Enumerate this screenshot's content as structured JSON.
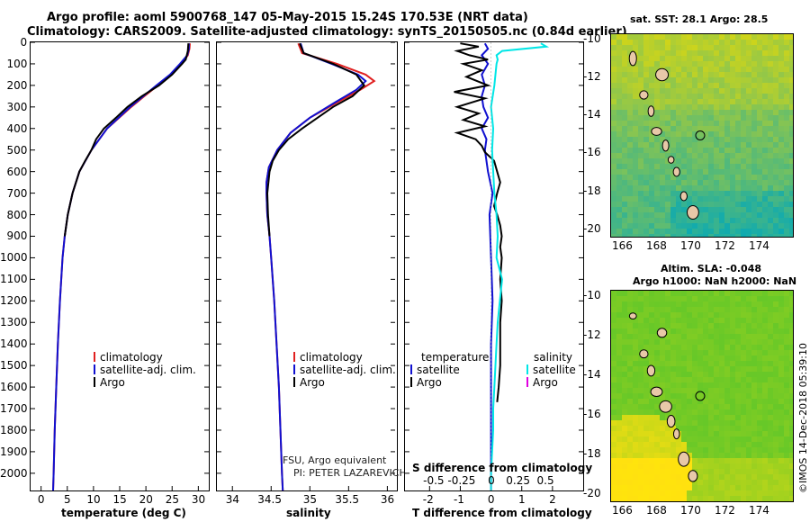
{
  "title_line1": "Argo profile: aoml 5900768_147 05-May-2015 15.24S 170.53E (NRT data)",
  "title_line2": "Climatology: CARS2009. Satellite-adjusted climatology: synTS_20150505.nc (0.84d earlier)",
  "depth_ticks": [
    "0",
    "100",
    "200",
    "300",
    "400",
    "500",
    "600",
    "700",
    "800",
    "900",
    "1000",
    "1100",
    "1200",
    "1300",
    "1400",
    "1500",
    "1600",
    "1700",
    "1800",
    "1900",
    "2000"
  ],
  "colors": {
    "climatology": "#e02020",
    "satellite": "#1010d0",
    "argo": "#000000",
    "satellite_s": "#00e6e6",
    "argo_s": "#e000e0"
  },
  "chart_data": [
    {
      "type": "line",
      "xlabel": "temperature (deg C)",
      "xticks": [
        "0",
        "5",
        "10",
        "15",
        "20",
        "25",
        "30"
      ],
      "xlim": [
        -2,
        32
      ],
      "ylim": [
        0,
        2080
      ],
      "legend": [
        "climatology",
        "satellite-adj. clim.",
        "Argo"
      ],
      "series": [
        {
          "name": "climatology",
          "depth": [
            5,
            30,
            60,
            100,
            150,
            200,
            250,
            300,
            400,
            500,
            600,
            700,
            800,
            900,
            1000,
            1200,
            1400,
            1600,
            1800,
            2000,
            2080
          ],
          "values": [
            28.4,
            28.3,
            28.0,
            26.8,
            24.9,
            22.3,
            19.7,
            17.2,
            12.6,
            9.6,
            7.3,
            6.0,
            5.1,
            4.5,
            4.1,
            3.6,
            3.2,
            2.9,
            2.6,
            2.4,
            2.3
          ]
        },
        {
          "name": "satellite-adj. clim.",
          "depth": [
            5,
            30,
            60,
            100,
            150,
            200,
            250,
            300,
            400,
            500,
            600,
            700,
            800,
            900,
            1000,
            1200,
            1400,
            1600,
            1800,
            2000,
            2080
          ],
          "values": [
            28.2,
            28.2,
            27.9,
            26.5,
            24.6,
            22.0,
            19.5,
            17.0,
            12.6,
            9.6,
            7.3,
            6.0,
            5.1,
            4.5,
            4.1,
            3.6,
            3.2,
            2.9,
            2.6,
            2.4,
            2.3
          ]
        },
        {
          "name": "Argo",
          "depth": [
            5,
            40,
            80,
            100,
            150,
            200,
            250,
            300,
            350,
            400,
            450,
            500,
            550,
            600,
            700,
            800,
            900
          ],
          "values": [
            28.1,
            28.0,
            27.6,
            26.9,
            25.0,
            22.5,
            19.2,
            16.5,
            14.3,
            12.0,
            10.5,
            9.6,
            8.4,
            7.3,
            6.0,
            5.1,
            4.5
          ]
        }
      ]
    },
    {
      "type": "line",
      "xlabel": "salinity",
      "xticks": [
        "34",
        "34.5",
        "35",
        "35.5",
        "36"
      ],
      "xlim": [
        33.8,
        36.1
      ],
      "ylim": [
        0,
        2080
      ],
      "legend": [
        "climatology",
        "satellite-adj. clim.",
        "Argo"
      ],
      "series": [
        {
          "name": "climatology",
          "depth": [
            5,
            50,
            100,
            150,
            180,
            220,
            280,
            350,
            420,
            500,
            580,
            650,
            700,
            800,
            900,
            1000,
            1200,
            1400,
            1600,
            1800,
            2000,
            2080
          ],
          "values": [
            34.85,
            34.9,
            35.35,
            35.72,
            35.83,
            35.65,
            35.35,
            35.0,
            34.75,
            34.58,
            34.47,
            34.44,
            34.44,
            34.45,
            34.48,
            34.5,
            34.54,
            34.57,
            34.6,
            34.62,
            34.64,
            34.65
          ]
        },
        {
          "name": "satellite-adj. clim.",
          "depth": [
            5,
            50,
            100,
            150,
            180,
            220,
            280,
            350,
            420,
            500,
            580,
            650,
            700,
            800,
            900,
            1000,
            1200,
            1400,
            1600,
            1800,
            2000,
            2080
          ],
          "values": [
            34.88,
            34.92,
            35.28,
            35.62,
            35.72,
            35.6,
            35.32,
            35.0,
            34.75,
            34.58,
            34.47,
            34.44,
            34.44,
            34.45,
            34.48,
            34.5,
            34.54,
            34.57,
            34.6,
            34.62,
            34.64,
            34.65
          ]
        },
        {
          "name": "Argo",
          "depth": [
            5,
            50,
            100,
            150,
            200,
            250,
            300,
            350,
            400,
            450,
            500,
            550,
            600,
            700,
            800,
            900
          ],
          "values": [
            34.87,
            34.92,
            35.3,
            35.6,
            35.7,
            35.55,
            35.3,
            35.1,
            34.9,
            34.72,
            34.6,
            34.52,
            34.48,
            34.45,
            34.46,
            34.48
          ]
        }
      ]
    },
    {
      "type": "line",
      "xlabel": "T difference from climatology",
      "xticks": [
        "-2",
        "-1",
        "0",
        "1",
        "2"
      ],
      "xlim": [
        -2.8,
        3.0
      ],
      "ylim": [
        0,
        2080
      ],
      "top_label": "S difference from climatology",
      "top_ticks": [
        "-0.5",
        "-0.25",
        "0",
        "0.25",
        "0.5"
      ],
      "legend_left": {
        "heading": "temperature",
        "items": [
          "satellite",
          "Argo"
        ]
      },
      "legend_right": {
        "heading": "salinity",
        "items": [
          "satellite",
          "Argo"
        ]
      },
      "series": [
        {
          "name": "satellite",
          "var": "temperature",
          "depth": [
            5,
            30,
            60,
            100,
            150,
            200,
            250,
            300,
            350,
            400,
            450,
            500,
            600,
            700,
            800,
            1000,
            1200,
            1400,
            1600,
            1800,
            2000,
            2080
          ],
          "values": [
            -0.2,
            -0.1,
            -0.3,
            -0.1,
            -0.3,
            -0.2,
            -0.3,
            -0.25,
            -0.1,
            -0.3,
            -0.15,
            -0.2,
            -0.1,
            0.05,
            -0.05,
            0.0,
            0.05,
            0.0,
            0.0,
            0.0,
            0.0,
            0.0
          ]
        },
        {
          "name": "Argo",
          "var": "temperature",
          "depth": [
            5,
            20,
            40,
            60,
            80,
            100,
            130,
            160,
            200,
            230,
            260,
            300,
            330,
            360,
            390,
            420,
            450,
            480,
            510,
            550,
            600,
            650,
            700,
            760,
            800,
            850,
            900,
            950,
            1000,
            1100,
            1200,
            1300,
            1400,
            1500,
            1600,
            1670
          ],
          "values": [
            -1.0,
            -0.4,
            -1.1,
            -0.7,
            -0.1,
            -0.9,
            -0.3,
            -0.8,
            -0.1,
            -1.2,
            -0.2,
            -1.1,
            -0.4,
            -0.9,
            -0.2,
            -1.1,
            -0.5,
            -0.3,
            -0.2,
            0.1,
            0.2,
            0.3,
            0.2,
            0.1,
            0.2,
            0.3,
            0.35,
            0.3,
            0.35,
            0.3,
            0.35,
            0.3,
            0.3,
            0.3,
            0.25,
            0.2
          ]
        },
        {
          "name": "satellite",
          "var": "salinity",
          "depth": [
            5,
            20,
            40,
            60,
            80,
            100,
            150,
            200,
            300,
            400,
            500,
            600,
            700,
            800,
            900,
            1000,
            1100,
            1200,
            1300,
            1400,
            1500,
            1600,
            1700,
            1800,
            1900,
            2000,
            2080
          ],
          "values": [
            0.45,
            0.5,
            0.1,
            0.05,
            0.06,
            0.05,
            0.04,
            0.03,
            0.0,
            0.02,
            0.01,
            0.02,
            0.03,
            0.05,
            0.06,
            0.05,
            0.1,
            0.08,
            0.06,
            0.05,
            0.04,
            0.03,
            0.02,
            0.02,
            0.01,
            0.0,
            0.0
          ]
        }
      ]
    }
  ],
  "notes": {
    "line1": "FSU, Argo equivalent",
    "line2": "PI: PETER LAZAREVICH"
  },
  "sst_map": {
    "title": "sat. SST: 28.1 Argo: 28.5",
    "yticks": [
      "-10",
      "-12",
      "-14",
      "-16",
      "-18",
      "-20"
    ],
    "xticks": [
      "166",
      "168",
      "170",
      "172",
      "174"
    ]
  },
  "sla_map": {
    "title1": "Altim. SLA: -0.048",
    "title2": "Argo h1000: NaN h2000: NaN",
    "yticks": [
      "-10",
      "-12",
      "-14",
      "-16",
      "-18",
      "-20"
    ],
    "xticks": [
      "166",
      "168",
      "170",
      "172",
      "174"
    ]
  },
  "stamp": "©IMOS 14-Dec-2018 05:39:10"
}
